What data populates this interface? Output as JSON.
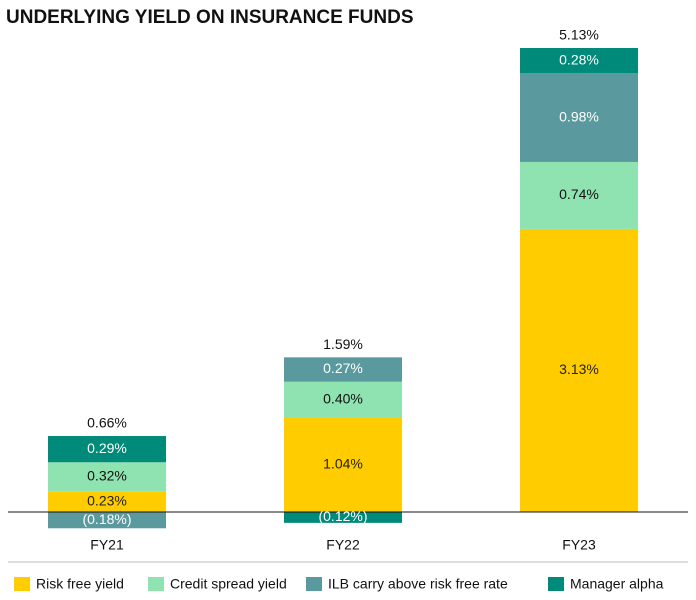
{
  "chart_data": {
    "type": "stacked-bar",
    "title": "UNDERLYING YIELD ON INSURANCE FUNDS",
    "categories": [
      "FY21",
      "FY22",
      "FY23"
    ],
    "series": [
      {
        "name": "Risk free yield",
        "color": "#ffcc00",
        "label_color": "#222222",
        "values": [
          0.23,
          1.04,
          3.13
        ],
        "value_labels": [
          "0.23%",
          "1.04%",
          "3.13%"
        ]
      },
      {
        "name": "Credit spread yield",
        "color": "#8fe3b0",
        "label_color": "#111111",
        "values": [
          0.32,
          0.4,
          0.74
        ],
        "value_labels": [
          "0.32%",
          "0.40%",
          "0.74%"
        ]
      },
      {
        "name": "ILB carry above risk free rate",
        "color": "#5a9a9f",
        "label_color": "#ffffff",
        "values": [
          -0.18,
          0.27,
          0.98
        ],
        "value_labels": [
          "(0.18%)",
          "0.27%",
          "0.98%"
        ]
      },
      {
        "name": "Manager alpha",
        "color": "#008a7a",
        "label_color": "#ffffff",
        "values": [
          0.29,
          -0.12,
          0.28
        ],
        "value_labels": [
          "0.29%",
          "(0.12%)",
          "0.28%"
        ]
      }
    ],
    "totals": {
      "values": [
        0.66,
        1.59,
        5.13
      ],
      "value_labels": [
        "0.66%",
        "1.59%",
        "5.13%"
      ]
    }
  }
}
